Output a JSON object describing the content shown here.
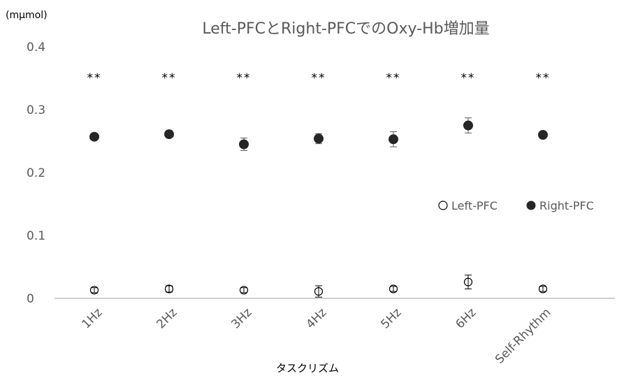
{
  "chart_data": {
    "type": "scatter",
    "title": "Left-PFCとRight-PFCでのOxy-Hb増加量",
    "ylabel": "(mμmol)",
    "xlabel": "タスクリズム",
    "categories": [
      "1Hz",
      "2Hz",
      "3Hz",
      "4Hz",
      "5Hz",
      "6Hz",
      "Self-Rhythm"
    ],
    "yticks": [
      "0",
      "0.1",
      "0.2",
      "0.3",
      "0.4"
    ],
    "ylim": [
      0,
      0.4
    ],
    "grid": false,
    "legend_position": "right",
    "series": [
      {
        "name": "Left-PFC",
        "marker": "open-circle",
        "color": "#000000",
        "values": [
          0.013,
          0.015,
          0.013,
          0.011,
          0.015,
          0.026,
          0.015
        ],
        "errors": [
          0.004,
          0.005,
          0.004,
          0.009,
          0.004,
          0.011,
          0.004
        ]
      },
      {
        "name": "Right-PFC",
        "marker": "filled-circle",
        "color": "#262626",
        "values": [
          0.257,
          0.261,
          0.245,
          0.254,
          0.253,
          0.275,
          0.26
        ],
        "errors": [
          0.003,
          0.003,
          0.01,
          0.008,
          0.012,
          0.012,
          0.003
        ]
      }
    ],
    "annotations": [
      "**",
      "**",
      "**",
      "**",
      "**",
      "**",
      "**"
    ]
  }
}
